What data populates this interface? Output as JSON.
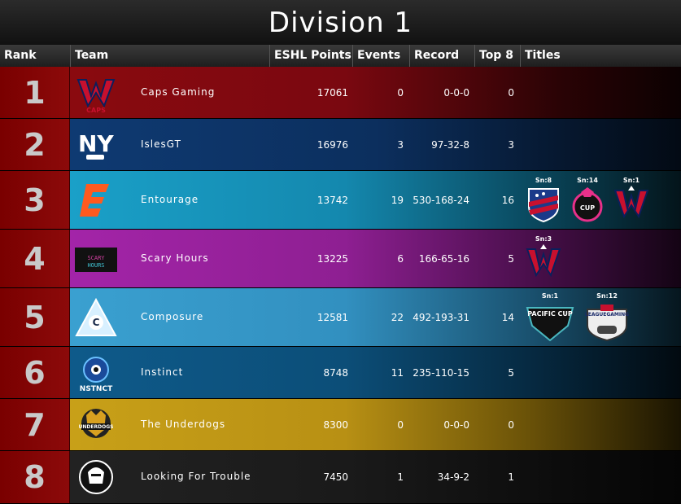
{
  "page": {
    "title": "Division 1"
  },
  "columns": {
    "rank": "Rank",
    "team": "Team",
    "points": "ESHL Points",
    "events": "Events",
    "record": "Record",
    "top8": "Top 8",
    "titles": "Titles"
  },
  "colors": {
    "rank_red": "#7a0000",
    "row1": "#8a0a0f",
    "row2": "#0e3a72",
    "row3": "#1aa0c8",
    "row4": "#a324a8",
    "row5": "#3aa0d0",
    "row6": "#0e5a8a",
    "row7": "#c8a018",
    "row8": "#222222"
  },
  "teams": [
    {
      "rank": "1",
      "name": "Caps Gaming",
      "points": "17061",
      "events": "0",
      "record": "0-0-0",
      "top8": "0",
      "logo": "caps-logo",
      "titles": []
    },
    {
      "rank": "2",
      "name": "IslesGT",
      "points": "16976",
      "events": "3",
      "record": "97-32-8",
      "top8": "3",
      "logo": "ny-logo",
      "titles": []
    },
    {
      "rank": "3",
      "name": "Entourage",
      "points": "13742",
      "events": "19",
      "record": "530-168-24",
      "top8": "16",
      "logo": "entourage-logo",
      "titles": [
        {
          "season": "Sn:8",
          "icon": "shield-trophy-icon"
        },
        {
          "season": "Sn:14",
          "icon": "stinger-cup-icon"
        },
        {
          "season": "Sn:1",
          "icon": "caps-trophy-icon"
        }
      ]
    },
    {
      "rank": "4",
      "name": "Scary Hours",
      "points": "13225",
      "events": "6",
      "record": "166-65-16",
      "top8": "5",
      "logo": "scary-hours-logo",
      "titles": [
        {
          "season": "Sn:3",
          "icon": "caps-trophy-icon"
        }
      ]
    },
    {
      "rank": "5",
      "name": "Composure",
      "points": "12581",
      "events": "22",
      "record": "492-193-31",
      "top8": "14",
      "logo": "composure-logo",
      "titles": [
        {
          "season": "Sn:1",
          "icon": "pacific-cup-icon",
          "label": "PACIFIC CUP"
        },
        {
          "season": "Sn:12",
          "icon": "league-gaming-icon",
          "label": "LEAGUEGAMING"
        }
      ]
    },
    {
      "rank": "6",
      "name": "Instinct",
      "points": "8748",
      "events": "11",
      "record": "235-110-15",
      "top8": "5",
      "logo": "instinct-logo",
      "titles": []
    },
    {
      "rank": "7",
      "name": "The Underdogs",
      "points": "8300",
      "events": "0",
      "record": "0-0-0",
      "top8": "0",
      "logo": "underdogs-logo",
      "titles": []
    },
    {
      "rank": "8",
      "name": "Looking For Trouble",
      "points": "7450",
      "events": "1",
      "record": "34-9-2",
      "top8": "1",
      "logo": "lft-logo",
      "titles": []
    }
  ]
}
